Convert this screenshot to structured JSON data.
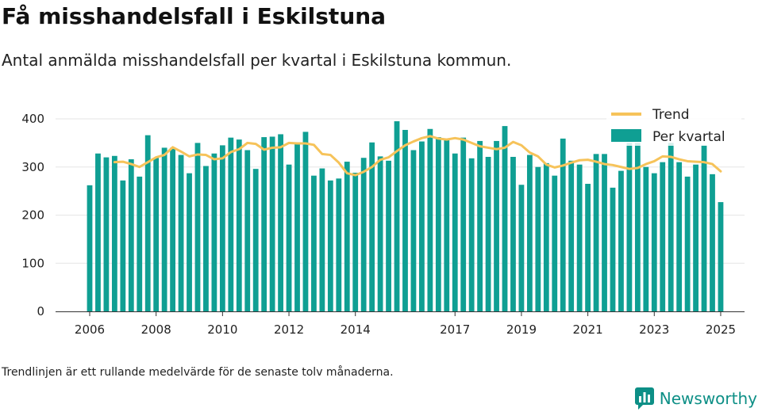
{
  "header": {
    "title": "Få misshandelsfall i Eskilstuna",
    "subtitle": "Antal anmälda misshandelsfall per kvartal i Eskilstuna kommun."
  },
  "footer": {
    "note": "Trendlinjen är ett rullande medelvärde för de senaste tolv månaderna.",
    "brand": "Newsworthy"
  },
  "colors": {
    "bar": "#0f9f93",
    "bar_highlight": "#c6e8e6",
    "trend": "#f6c35a",
    "grid": "#e6e6e6",
    "brand": "#0d8f86"
  },
  "chart_data": {
    "type": "bar",
    "x_ticks": [
      "2006",
      "2008",
      "2010",
      "2012",
      "2014",
      "2017",
      "2019",
      "2021",
      "2023",
      "2025"
    ],
    "y_ticks": [
      "0",
      "100",
      "200",
      "300",
      "400"
    ],
    "ylim": [
      0,
      400
    ],
    "grid": true,
    "legend_position": "top-right",
    "legend": [
      "Trend",
      "Per kvartal"
    ],
    "series": [
      {
        "name": "Per kvartal",
        "type": "bar",
        "x": [
          "2006 Q1",
          "2006 Q2",
          "2006 Q3",
          "2006 Q4",
          "2007 Q1",
          "2007 Q2",
          "2007 Q3",
          "2007 Q4",
          "2008 Q1",
          "2008 Q2",
          "2008 Q3",
          "2008 Q4",
          "2009 Q1",
          "2009 Q2",
          "2009 Q3",
          "2009 Q4",
          "2010 Q1",
          "2010 Q2",
          "2010 Q3",
          "2010 Q4",
          "2011 Q1",
          "2011 Q2",
          "2011 Q3",
          "2011 Q4",
          "2012 Q1",
          "2012 Q2",
          "2012 Q3",
          "2012 Q4",
          "2013 Q1",
          "2013 Q2",
          "2013 Q3",
          "2013 Q4",
          "2014 Q1",
          "2014 Q2",
          "2014 Q3",
          "2014 Q4",
          "2015 Q1",
          "2015 Q2",
          "2015 Q3",
          "2015 Q4",
          "2016 Q1",
          "2016 Q2",
          "2016 Q3",
          "2016 Q4",
          "2017 Q1",
          "2017 Q2",
          "2017 Q3",
          "2017 Q4",
          "2018 Q1",
          "2018 Q2",
          "2018 Q3",
          "2018 Q4",
          "2019 Q1",
          "2019 Q2",
          "2019 Q3",
          "2019 Q4",
          "2020 Q1",
          "2020 Q2",
          "2020 Q3",
          "2020 Q4",
          "2021 Q1",
          "2021 Q2",
          "2021 Q3",
          "2021 Q4",
          "2022 Q1",
          "2022 Q2",
          "2022 Q3",
          "2022 Q4",
          "2023 Q1",
          "2023 Q2",
          "2023 Q3",
          "2023 Q4",
          "2024 Q1",
          "2024 Q2",
          "2024 Q3",
          "2024 Q4",
          "2025 Q1"
        ],
        "values": [
          262,
          328,
          320,
          323,
          272,
          316,
          280,
          366,
          319,
          340,
          340,
          325,
          287,
          350,
          302,
          328,
          345,
          361,
          357,
          335,
          296,
          362,
          363,
          368,
          305,
          348,
          373,
          282,
          297,
          272,
          276,
          311,
          288,
          319,
          351,
          322,
          313,
          395,
          377,
          335,
          353,
          379,
          362,
          357,
          328,
          361,
          318,
          354,
          321,
          354,
          385,
          321,
          263,
          325,
          300,
          308,
          282,
          359,
          313,
          305,
          265,
          327,
          327,
          257,
          292,
          350,
          350,
          300,
          287,
          310,
          350,
          310,
          280,
          305,
          345,
          285,
          227
        ]
      },
      {
        "name": "Trend",
        "type": "line",
        "x": [
          "2006 Q4",
          "2007 Q1",
          "2007 Q2",
          "2007 Q3",
          "2007 Q4",
          "2008 Q1",
          "2008 Q2",
          "2008 Q3",
          "2008 Q4",
          "2009 Q1",
          "2009 Q2",
          "2009 Q3",
          "2009 Q4",
          "2010 Q1",
          "2010 Q2",
          "2010 Q3",
          "2010 Q4",
          "2011 Q1",
          "2011 Q2",
          "2011 Q3",
          "2011 Q4",
          "2012 Q1",
          "2012 Q2",
          "2012 Q3",
          "2012 Q4",
          "2013 Q1",
          "2013 Q2",
          "2013 Q3",
          "2013 Q4",
          "2014 Q1",
          "2014 Q2",
          "2014 Q3",
          "2014 Q4",
          "2015 Q1",
          "2015 Q2",
          "2015 Q3",
          "2015 Q4",
          "2016 Q1",
          "2016 Q2",
          "2016 Q3",
          "2016 Q4",
          "2017 Q1",
          "2017 Q2",
          "2017 Q3",
          "2017 Q4",
          "2018 Q1",
          "2018 Q2",
          "2018 Q3",
          "2018 Q4",
          "2019 Q1",
          "2019 Q2",
          "2019 Q3",
          "2019 Q4",
          "2020 Q1",
          "2020 Q2",
          "2020 Q3",
          "2020 Q4",
          "2021 Q1",
          "2021 Q2",
          "2021 Q3",
          "2021 Q4",
          "2022 Q1",
          "2022 Q2",
          "2022 Q3",
          "2022 Q4",
          "2023 Q1",
          "2023 Q2",
          "2023 Q3",
          "2023 Q4",
          "2024 Q1",
          "2024 Q2",
          "2024 Q3",
          "2024 Q4",
          "2025 Q1"
        ],
        "values": [
          310,
          311,
          306,
          300,
          310,
          320,
          325,
          341,
          332,
          322,
          326,
          325,
          316,
          318,
          331,
          337,
          350,
          348,
          336,
          340,
          341,
          350,
          349,
          349,
          346,
          327,
          325,
          309,
          287,
          283,
          290,
          300,
          315,
          320,
          333,
          345,
          353,
          360,
          364,
          359,
          357,
          360,
          357,
          350,
          343,
          340,
          337,
          340,
          352,
          345,
          330,
          322,
          305,
          299,
          303,
          309,
          314,
          315,
          311,
          306,
          304,
          300,
          296,
          298,
          306,
          312,
          322,
          321,
          316,
          312,
          311,
          310,
          306,
          291
        ]
      }
    ]
  }
}
